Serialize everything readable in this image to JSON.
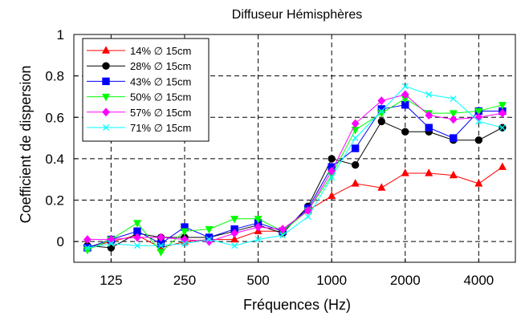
{
  "chart_data": {
    "type": "line",
    "title": "Diffuseur Hémisphères",
    "xlabel": "Fréquences (Hz)",
    "ylabel": "Coefficient de dispersion",
    "x_scale": "log",
    "x": [
      100,
      125,
      160,
      200,
      250,
      315,
      400,
      500,
      630,
      800,
      1000,
      1250,
      1600,
      2000,
      2500,
      3150,
      4000,
      5000
    ],
    "x_tick_values": [
      125,
      250,
      500,
      1000,
      2000,
      4000
    ],
    "x_tick_labels": [
      "125",
      "250",
      "500",
      "1000",
      "2000",
      "4000"
    ],
    "ylim": [
      -0.1,
      1.0
    ],
    "y_ticks": [
      0,
      0.2,
      0.4,
      0.6,
      0.8,
      1
    ],
    "y_tick_labels": [
      "0",
      "0.2",
      "0.4",
      "0.6",
      "0.8",
      "1"
    ],
    "grid": true,
    "legend_position": "top-left",
    "series": [
      {
        "name": "14% ∅ 15cm",
        "color": "#ff0000",
        "marker": "triangle-up",
        "values": [
          -0.03,
          0.0,
          0.03,
          -0.03,
          0.0,
          0.01,
          0.01,
          0.05,
          0.05,
          0.15,
          0.22,
          0.28,
          0.26,
          0.33,
          0.33,
          0.32,
          0.28,
          0.36
        ]
      },
      {
        "name": "28% ∅ 15cm",
        "color": "#000000",
        "marker": "circle",
        "values": [
          -0.02,
          -0.03,
          0.04,
          0.02,
          0.02,
          0.02,
          0.05,
          0.08,
          0.04,
          0.17,
          0.4,
          0.37,
          0.58,
          0.53,
          0.53,
          0.49,
          0.49,
          0.55
        ]
      },
      {
        "name": "43% ∅ 15cm",
        "color": "#0000ff",
        "marker": "square",
        "values": [
          -0.03,
          0.01,
          0.05,
          -0.01,
          0.07,
          0.02,
          0.06,
          0.09,
          0.05,
          0.16,
          0.36,
          0.45,
          0.64,
          0.66,
          0.55,
          0.5,
          0.63,
          0.63
        ]
      },
      {
        "name": "50% ∅ 15cm",
        "color": "#00ff00",
        "marker": "triangle-down",
        "values": [
          -0.04,
          0.01,
          0.09,
          -0.05,
          0.05,
          0.06,
          0.11,
          0.11,
          0.05,
          0.15,
          0.32,
          0.54,
          0.62,
          0.69,
          0.62,
          0.62,
          0.63,
          0.66
        ]
      },
      {
        "name": "57% ∅ 15cm",
        "color": "#ff00ff",
        "marker": "diamond",
        "values": [
          0.01,
          0.01,
          0.02,
          0.02,
          0.01,
          0.0,
          0.04,
          0.07,
          0.06,
          0.15,
          0.34,
          0.57,
          0.68,
          0.71,
          0.61,
          0.59,
          0.6,
          0.62
        ]
      },
      {
        "name": "71% ∅ 15cm",
        "color": "#00ffff",
        "marker": "x",
        "values": [
          -0.03,
          -0.01,
          -0.02,
          -0.02,
          -0.01,
          0.01,
          -0.02,
          0.01,
          0.03,
          0.12,
          0.31,
          0.5,
          0.63,
          0.75,
          0.71,
          0.69,
          0.58,
          0.55
        ]
      }
    ]
  }
}
